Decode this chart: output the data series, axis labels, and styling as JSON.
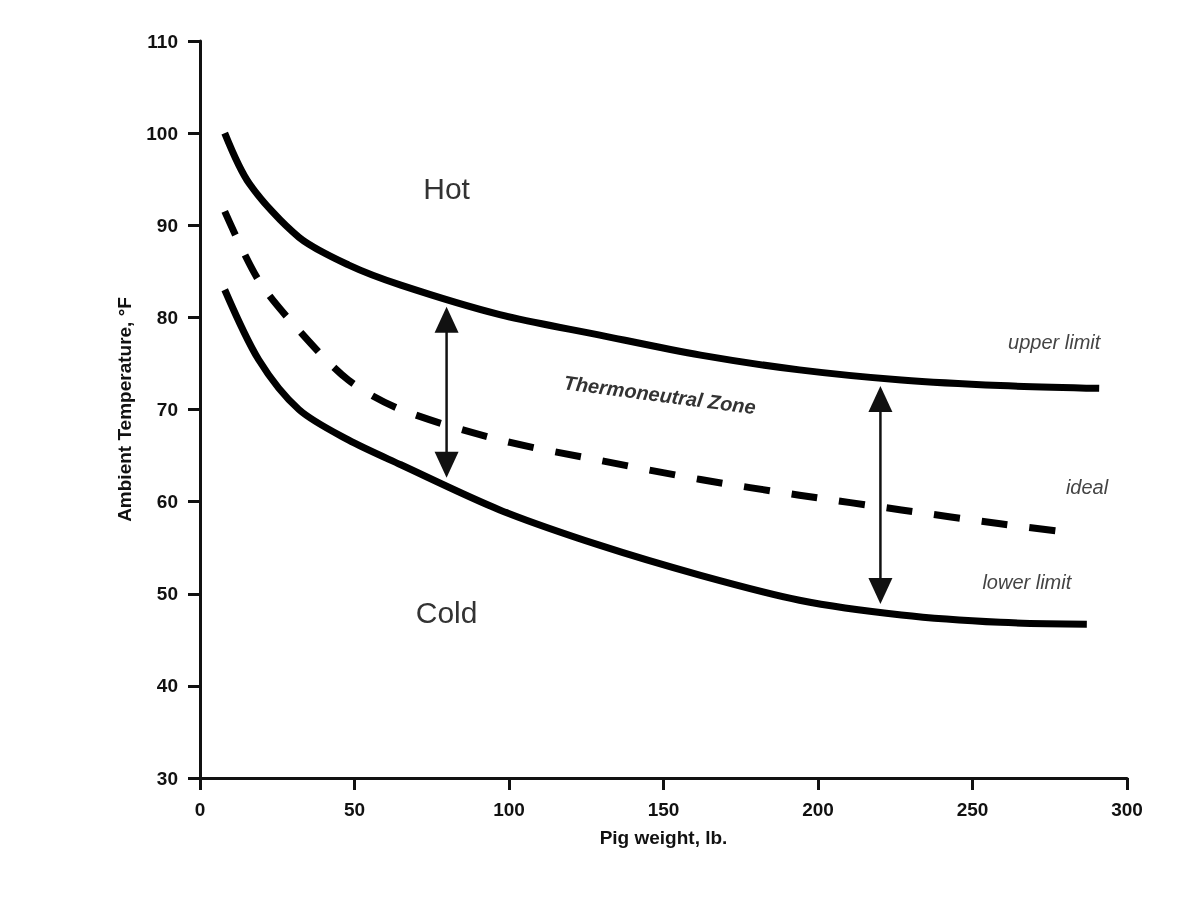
{
  "chart_data": {
    "type": "line",
    "xlabel": "Pig weight, lb.",
    "ylabel": "Ambient Temperature, °F",
    "xlim": [
      0,
      300
    ],
    "xticks": [
      0,
      50,
      100,
      150,
      200,
      250,
      300
    ],
    "ylim": [
      30,
      110
    ],
    "yticks": [
      30,
      40,
      50,
      60,
      70,
      80,
      90,
      100,
      110
    ],
    "grid": false,
    "legend": false,
    "marker": "none",
    "annotations": [
      "Hot",
      "Cold",
      "Thermoneutral Zone"
    ],
    "series": [
      {
        "name": "upper limit",
        "color": "#000000",
        "line_style": "solid",
        "x": [
          8,
          16,
          32,
          48,
          65,
          97,
          129,
          162,
          194,
          227,
          259,
          291
        ],
        "values": [
          100,
          94.5,
          88.7,
          85.7,
          83.5,
          80.3,
          78.1,
          75.9,
          74.3,
          73.2,
          72.6,
          72.3
        ]
      },
      {
        "name": "ideal",
        "color": "#000000",
        "line_style": "dashed",
        "x": [
          8,
          19,
          32,
          48,
          65,
          97,
          129,
          162,
          194,
          227,
          259,
          278
        ],
        "values": [
          91.5,
          84,
          78.6,
          73.2,
          70,
          66.7,
          64.5,
          62.4,
          60.7,
          59.1,
          57.6,
          56.8
        ]
      },
      {
        "name": "lower limit",
        "color": "#000000",
        "line_style": "solid",
        "x": [
          8,
          19,
          32,
          48,
          65,
          97,
          129,
          162,
          194,
          227,
          259,
          287
        ],
        "values": [
          83,
          75.4,
          70,
          66.7,
          64,
          59.1,
          55.3,
          52,
          49.3,
          47.7,
          46.9,
          46.7
        ]
      }
    ]
  }
}
